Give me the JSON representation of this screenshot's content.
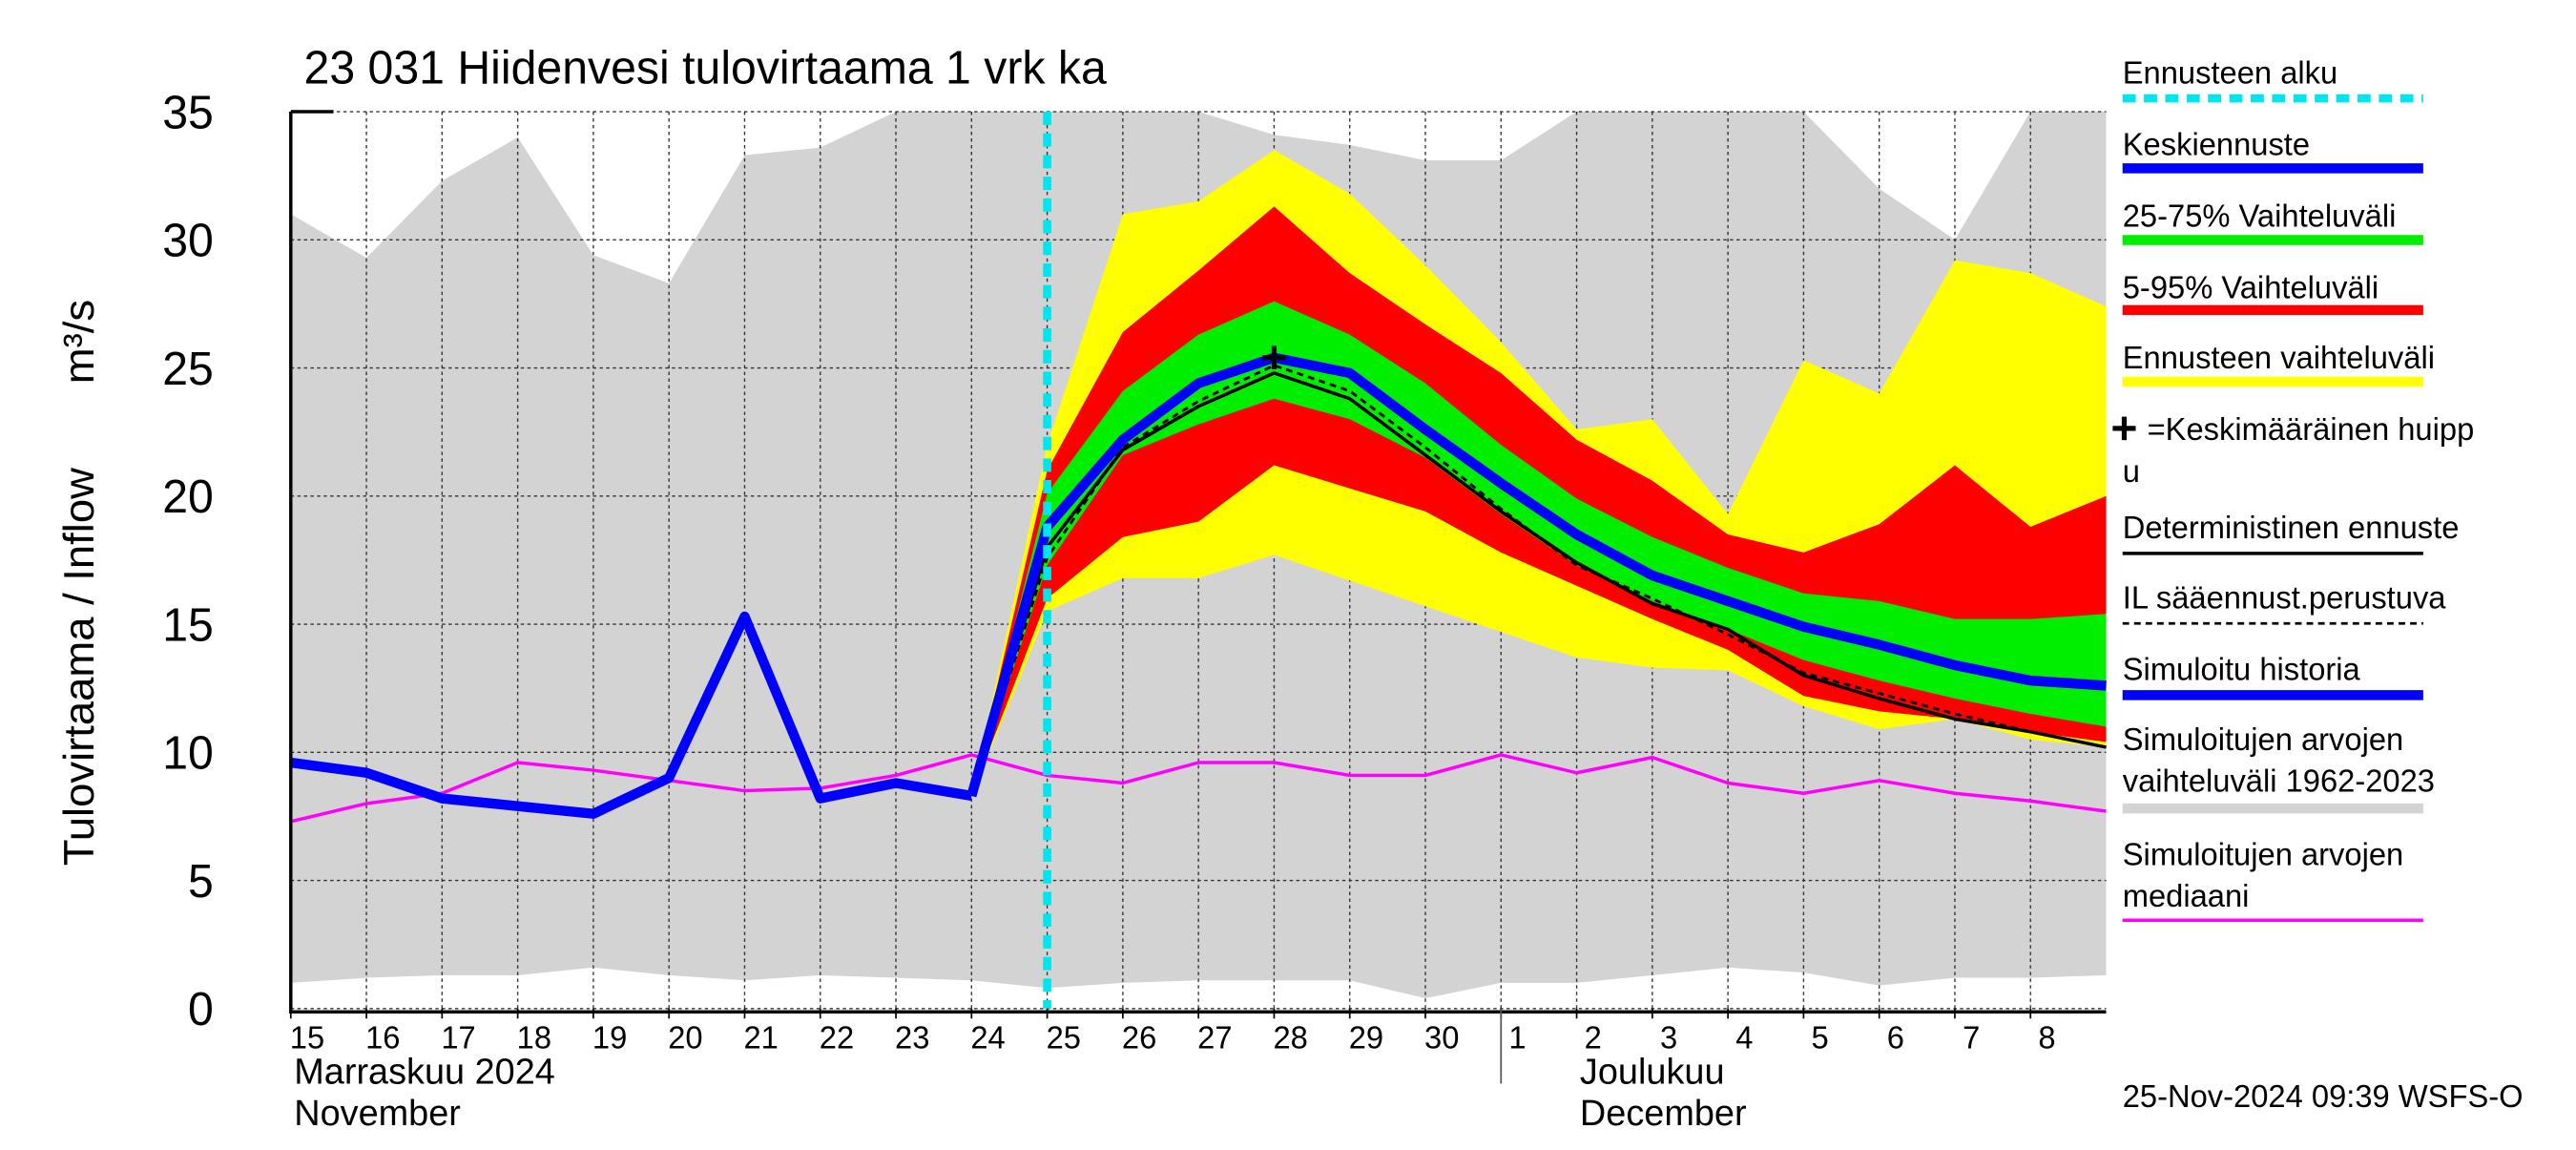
{
  "chart_data": {
    "type": "line",
    "title": "23 031 Hiidenvesi tulovirtaama 1 vrk ka",
    "ylabel": "Tulovirtaama / Inflow",
    "yunit": "m³/s",
    "footer": "25-Nov-2024 09:39 WSFS-O",
    "xlim": [
      0,
      24
    ],
    "ylim": [
      0,
      35
    ],
    "yticks": [
      0,
      5,
      10,
      15,
      20,
      25,
      30,
      35
    ],
    "grid": true,
    "xticks": [
      {
        "value": 0,
        "label": "15"
      },
      {
        "value": 1,
        "label": "16"
      },
      {
        "value": 2,
        "label": "17"
      },
      {
        "value": 3,
        "label": "18"
      },
      {
        "value": 4,
        "label": "19"
      },
      {
        "value": 5,
        "label": "20"
      },
      {
        "value": 6,
        "label": "21"
      },
      {
        "value": 7,
        "label": "22"
      },
      {
        "value": 8,
        "label": "23"
      },
      {
        "value": 9,
        "label": "24"
      },
      {
        "value": 10,
        "label": "25"
      },
      {
        "value": 11,
        "label": "26"
      },
      {
        "value": 12,
        "label": "27"
      },
      {
        "value": 13,
        "label": "28"
      },
      {
        "value": 14,
        "label": "29"
      },
      {
        "value": 15,
        "label": "30"
      },
      {
        "value": 16,
        "label": "1"
      },
      {
        "value": 17,
        "label": "2"
      },
      {
        "value": 18,
        "label": "3"
      },
      {
        "value": 19,
        "label": "4"
      },
      {
        "value": 20,
        "label": "5"
      },
      {
        "value": 21,
        "label": "6"
      },
      {
        "value": 22,
        "label": "7"
      },
      {
        "value": 23,
        "label": "8"
      }
    ],
    "months": [
      {
        "value": 0,
        "lines": [
          "Marraskuu 2024",
          "November"
        ]
      },
      {
        "value": 16,
        "lines": [
          "Joulukuu",
          "December"
        ]
      }
    ],
    "x": [
      0,
      1,
      2,
      3,
      4,
      5,
      6,
      7,
      8,
      9,
      10,
      11,
      12,
      13,
      14,
      15,
      16,
      17,
      18,
      19,
      20,
      21,
      22,
      23,
      24
    ],
    "series": [
      {
        "name": [
          "Ennusteen alku"
        ],
        "color": "#00e5ee",
        "style": "vline",
        "at": 10
      },
      {
        "name": [
          "Keskiennuste"
        ],
        "color": "#0000ff",
        "style": "thick",
        "values": [
          null,
          null,
          null,
          null,
          null,
          null,
          null,
          null,
          null,
          8.3,
          18.8,
          22.2,
          24.4,
          25.4,
          24.8,
          22.6,
          20.5,
          18.5,
          16.9,
          15.9,
          14.9,
          14.2,
          13.4,
          12.8,
          12.6
        ]
      },
      {
        "name": [
          "25-75% Vaihteluväli"
        ],
        "color": "#00ee00",
        "style": "band",
        "low": [
          null,
          null,
          null,
          null,
          null,
          null,
          null,
          null,
          null,
          8.3,
          17.3,
          21.6,
          22.8,
          23.8,
          23.0,
          21.5,
          19.3,
          17.3,
          15.9,
          14.8,
          13.6,
          12.8,
          12.1,
          11.5,
          11.0
        ],
        "high": [
          null,
          null,
          null,
          null,
          null,
          null,
          null,
          null,
          null,
          8.3,
          20.1,
          24.1,
          26.3,
          27.6,
          26.3,
          24.4,
          22.0,
          19.9,
          18.4,
          17.2,
          16.2,
          15.9,
          15.2,
          15.2,
          15.4
        ]
      },
      {
        "name": [
          "5-95% Vaihteluväli"
        ],
        "color": "#ff0000",
        "style": "band",
        "low": [
          null,
          null,
          null,
          null,
          null,
          null,
          null,
          null,
          null,
          8.3,
          16.0,
          18.4,
          19.0,
          21.2,
          20.3,
          19.4,
          17.8,
          16.5,
          15.2,
          14.0,
          12.2,
          11.6,
          11.3,
          10.8,
          10.4
        ],
        "high": [
          null,
          null,
          null,
          null,
          null,
          null,
          null,
          null,
          null,
          8.3,
          21.0,
          26.4,
          28.8,
          31.3,
          28.7,
          26.7,
          24.8,
          22.2,
          20.6,
          18.5,
          17.8,
          18.9,
          21.2,
          18.8,
          20.0
        ]
      },
      {
        "name": [
          "Ennusteen vaihteluväli"
        ],
        "color": "#ffff00",
        "style": "band",
        "low": [
          null,
          null,
          null,
          null,
          null,
          null,
          null,
          null,
          null,
          8.3,
          15.5,
          16.8,
          16.8,
          17.7,
          16.7,
          15.7,
          14.7,
          13.7,
          13.3,
          13.2,
          11.8,
          10.9,
          11.3,
          10.5,
          10.2
        ],
        "high": [
          null,
          null,
          null,
          null,
          null,
          null,
          null,
          null,
          null,
          8.3,
          22.0,
          31.0,
          31.5,
          33.5,
          31.8,
          29.0,
          26.0,
          22.6,
          23.0,
          19.3,
          25.3,
          24.0,
          29.2,
          28.7,
          27.4
        ]
      },
      {
        "name": [
          "=Keskimääräinen huipp",
          "u"
        ],
        "color": "#000000",
        "style": "marker",
        "point": [
          13,
          25.4
        ]
      },
      {
        "name": [
          "Deterministinen ennuste"
        ],
        "color": "#000000",
        "style": "line",
        "values": [
          null,
          null,
          null,
          null,
          null,
          null,
          null,
          null,
          null,
          8.3,
          18.0,
          21.8,
          23.5,
          24.8,
          23.8,
          21.6,
          19.4,
          17.4,
          15.8,
          14.8,
          13.0,
          12.1,
          11.3,
          10.8,
          10.2
        ]
      },
      {
        "name": [
          "IL sääennust.perustuva"
        ],
        "color": "#000000",
        "style": "dashed",
        "values": [
          null,
          null,
          null,
          null,
          null,
          null,
          null,
          null,
          null,
          8.3,
          17.6,
          21.9,
          23.7,
          25.1,
          24.1,
          21.9,
          19.5,
          17.3,
          16.0,
          14.6,
          13.1,
          12.3,
          11.5,
          10.8,
          10.2
        ]
      },
      {
        "name": [
          "Simuloitu historia"
        ],
        "color": "#0000ff",
        "style": "thick",
        "values": [
          9.6,
          9.2,
          8.2,
          7.9,
          7.6,
          9.0,
          15.3,
          8.2,
          8.8,
          8.3,
          null,
          null,
          null,
          null,
          null,
          null,
          null,
          null,
          null,
          null,
          null,
          null,
          null,
          null,
          null
        ]
      },
      {
        "name": [
          "Simuloitujen arvojen",
          "vaihteluväli 1962-2023"
        ],
        "color": "#d3d3d3",
        "style": "band",
        "low": [
          1.0,
          1.2,
          1.3,
          1.3,
          1.6,
          1.3,
          1.1,
          1.3,
          1.2,
          1.1,
          0.8,
          1.0,
          1.1,
          1.1,
          1.1,
          0.4,
          1.0,
          1.0,
          1.3,
          1.6,
          1.4,
          0.9,
          1.2,
          1.2,
          1.3
        ],
        "high": [
          31.0,
          29.3,
          32.3,
          34.0,
          29.4,
          28.3,
          33.3,
          33.6,
          35,
          35,
          35,
          35,
          35,
          34.1,
          33.7,
          33.1,
          33.1,
          35,
          35,
          35,
          35,
          32.0,
          30.0,
          35,
          35
        ]
      },
      {
        "name": [
          "Simuloitujen arvojen",
          "mediaani"
        ],
        "color": "#ff00ff",
        "style": "line",
        "values": [
          7.3,
          8.0,
          8.4,
          9.6,
          9.3,
          8.9,
          8.5,
          8.6,
          9.1,
          9.9,
          9.1,
          8.8,
          9.6,
          9.6,
          9.1,
          9.1,
          9.9,
          9.2,
          9.8,
          8.8,
          8.4,
          8.9,
          8.4,
          8.1,
          7.7
        ]
      }
    ]
  }
}
